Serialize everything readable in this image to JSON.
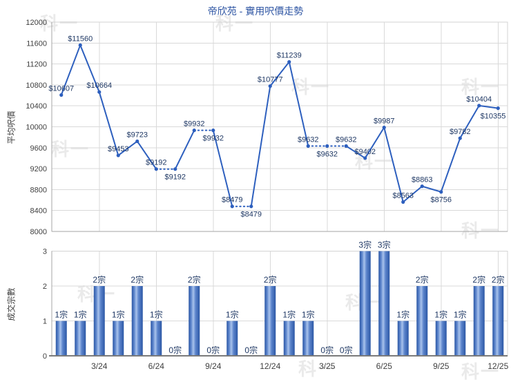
{
  "page": {
    "title": "帝欣苑 - 實用呎價走勢",
    "watermark_text": "科一"
  },
  "colors": {
    "title": "#2e55a3",
    "line": "#2d5fbe",
    "marker": "#2d5fbe",
    "data_label": "#1f3864",
    "tick_label": "#3f3f3f",
    "grid": "#d9d9d9",
    "plot_border": "#d3d3d3",
    "axis_line": "#a6a6a6",
    "bottom_axis_line": "#7a7a7a",
    "bar_edge": "#2b57a5",
    "bar_mid": "#5d85cc",
    "bar_light": "#a9c3ec"
  },
  "chart_data": [
    {
      "type": "line",
      "title": "帝欣苑 - 實用呎價走勢",
      "ylabel": "平均呎價",
      "ylim": [
        8000,
        12000
      ],
      "ytick_step": 400,
      "grid": "on",
      "x": [
        "1/24",
        "2/24",
        "3/24",
        "4/24",
        "5/24",
        "6/24",
        "7/24",
        "8/24",
        "9/24",
        "10/24",
        "11/24",
        "12/24",
        "1/25",
        "2/25",
        "3/25",
        "4/25",
        "5/25",
        "6/25",
        "7/25",
        "8/25",
        "9/25",
        "10/25",
        "11/25",
        "12/25"
      ],
      "values": [
        10607,
        11560,
        10664,
        9453,
        9723,
        9192,
        9192,
        9932,
        9932,
        8479,
        8479,
        10777,
        11239,
        9632,
        9632,
        9632,
        9402,
        9987,
        8563,
        8863,
        8756,
        9782,
        10404,
        10355
      ],
      "data_labels": [
        "$10607",
        "$11560",
        "$10664",
        "$9453",
        "$9723",
        "$9192",
        "$9192",
        "$9932",
        "$9932",
        "$8479",
        "$8479",
        "$10777",
        "$11239",
        "$9632",
        "$9632",
        "$9632",
        "$9402",
        "$9987",
        "$8563",
        "$8863",
        "$8756",
        "$9782",
        "$10404",
        "$10355"
      ],
      "label_position": [
        "above",
        "above",
        "above",
        "above",
        "above",
        "above",
        "below",
        "above",
        "below",
        "above",
        "below",
        "above",
        "above",
        "above",
        "below",
        "above",
        "above",
        "above",
        "above",
        "above",
        "below",
        "above",
        "above",
        "below"
      ],
      "dotted_rule": "segment entering a month with 0 transactions is dotted",
      "xticks_gridline_only": [
        "3/24",
        "6/24",
        "9/24",
        "12/24",
        "3/25",
        "6/25",
        "9/25",
        "12/25"
      ]
    },
    {
      "type": "bar",
      "ylabel": "成交宗數",
      "ylim": [
        0,
        3
      ],
      "ytick_step": 1,
      "grid": "on",
      "x": [
        "1/24",
        "2/24",
        "3/24",
        "4/24",
        "5/24",
        "6/24",
        "7/24",
        "8/24",
        "9/24",
        "10/24",
        "11/24",
        "12/24",
        "1/25",
        "2/25",
        "3/25",
        "4/25",
        "5/25",
        "6/25",
        "7/25",
        "8/25",
        "9/25",
        "10/25",
        "11/25",
        "12/25"
      ],
      "values": [
        1,
        1,
        2,
        1,
        2,
        1,
        0,
        2,
        0,
        1,
        0,
        2,
        1,
        1,
        0,
        0,
        3,
        3,
        1,
        2,
        1,
        1,
        2,
        2
      ],
      "data_labels": [
        "1宗",
        "1宗",
        "2宗",
        "1宗",
        "2宗",
        "1宗",
        "0宗",
        "2宗",
        "0宗",
        "1宗",
        "0宗",
        "2宗",
        "1宗",
        "1宗",
        "0宗",
        "0宗",
        "3宗",
        "3宗",
        "1宗",
        "2宗",
        "1宗",
        "1宗",
        "2宗",
        "2宗"
      ],
      "xtick_labels": [
        "3/24",
        "6/24",
        "9/24",
        "12/24",
        "3/25",
        "6/25",
        "9/25",
        "12/25"
      ]
    }
  ]
}
